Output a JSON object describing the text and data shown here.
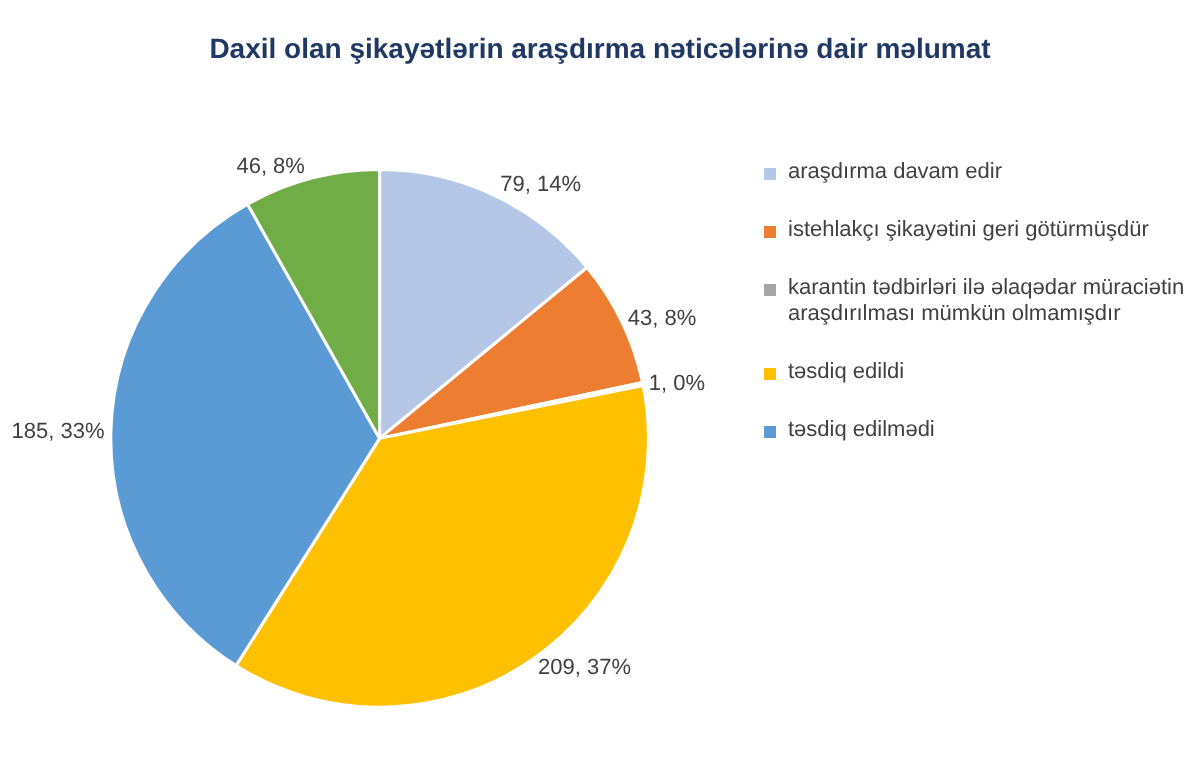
{
  "chart_data": {
    "type": "pie",
    "title": "Daxil olan şikayətlərin araşdırma nəticələrinə dair məlumat",
    "categories": [
      "araşdırma davam edir",
      "istehlakçı şikayətini geri götürmüşdür",
      "karantin tədbirləri ilə əlaqədar müraciətin araşdırılması mümkün olmamışdır",
      "təsdiq edildi",
      "təsdiq edilmədi",
      null
    ],
    "values": [
      79,
      43,
      1,
      209,
      185,
      46
    ],
    "value_labels": [
      "79, 14%",
      "43, 8%",
      "1, 0%",
      "209, 37%",
      "185, 33%",
      "46, 8%"
    ],
    "colors": [
      "#b4c7e7",
      "#ed7d31",
      "#a5a5a5",
      "#ffc000",
      "#5b9bd5",
      "#70ad47"
    ],
    "legend": "right"
  }
}
